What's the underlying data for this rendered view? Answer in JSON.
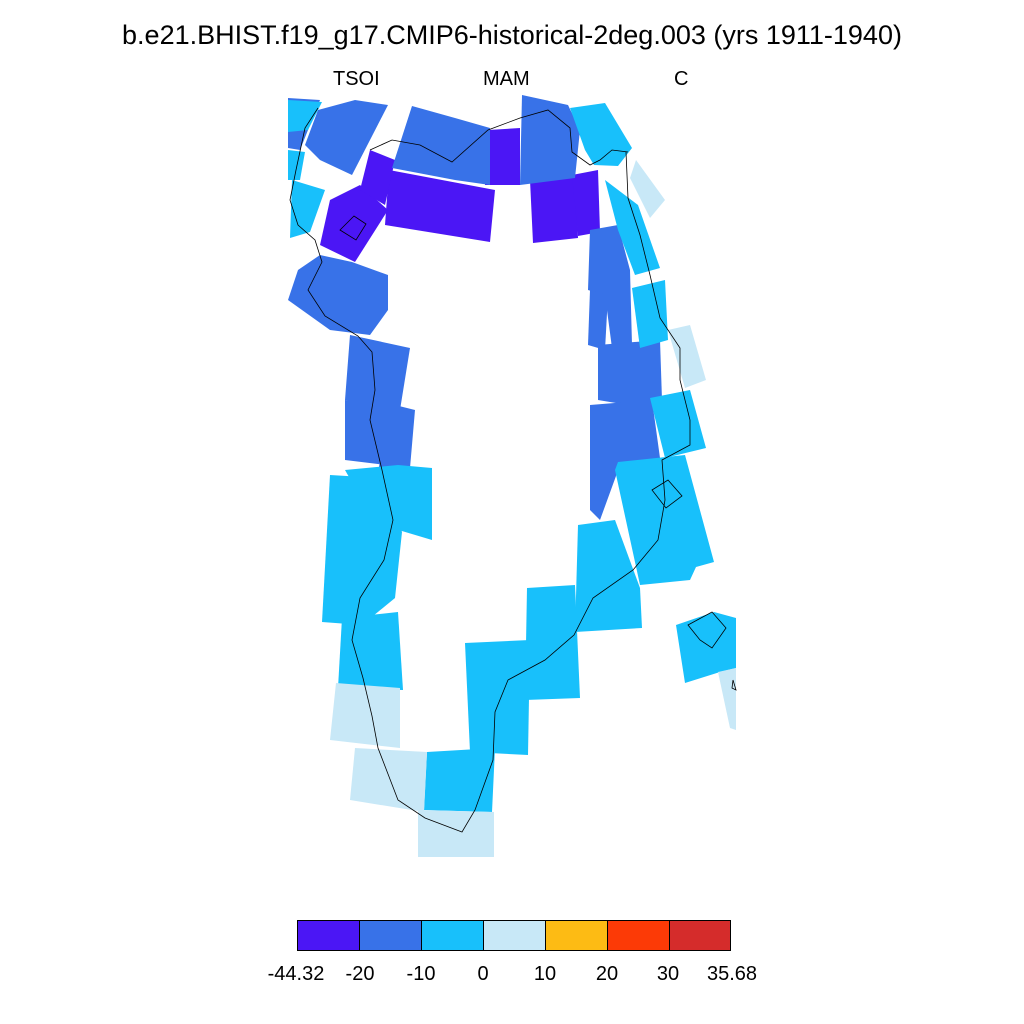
{
  "title": "b.e21.BHIST.f19_g17.CMIP6-historical-2deg.003 (yrs 1911-1940)",
  "subtitles": {
    "left": "TSOI",
    "center": "MAM",
    "right": "C"
  },
  "colorbar": {
    "colors": [
      "#4b16f5",
      "#3872e8",
      "#18c0fb",
      "#c8e8f7",
      "#fdbb14",
      "#fc3a06",
      "#d52c2b"
    ],
    "labels": [
      "-44.32",
      "-20",
      "-10",
      "0",
      "10",
      "20",
      "30",
      "35.68"
    ]
  }
}
